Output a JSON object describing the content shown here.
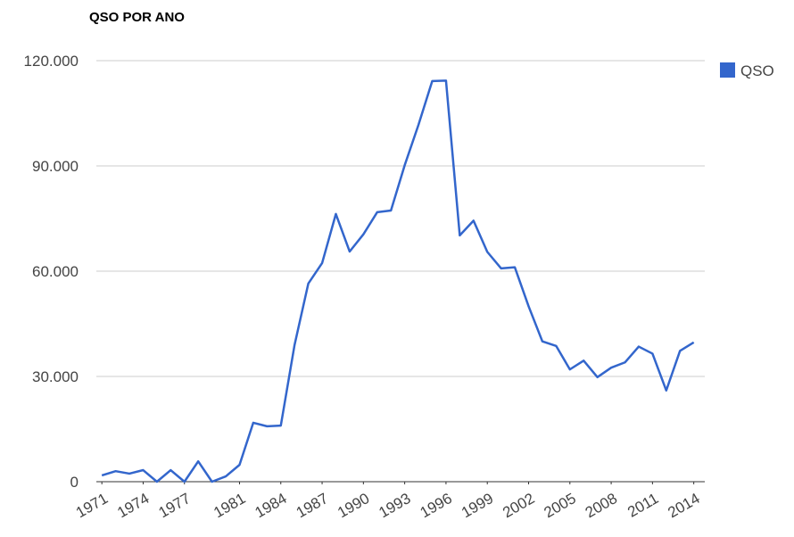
{
  "chart_data": {
    "type": "line",
    "title": "QSO POR ANO",
    "x": [
      1971,
      1972,
      1973,
      1974,
      1975,
      1976,
      1977,
      1978,
      1979,
      1980,
      1981,
      1982,
      1983,
      1984,
      1985,
      1986,
      1987,
      1988,
      1989,
      1990,
      1991,
      1992,
      1993,
      1994,
      1995,
      1996,
      1997,
      1998,
      1999,
      2000,
      2001,
      2002,
      2003,
      2004,
      2005,
      2006,
      2007,
      2008,
      2009,
      2010,
      2011,
      2012,
      2013,
      2014
    ],
    "series": [
      {
        "name": "QSO",
        "color": "#3366cc",
        "values": [
          1800,
          3000,
          2300,
          3300,
          0,
          3300,
          0,
          5800,
          0,
          1500,
          4800,
          16800,
          15800,
          16000,
          39000,
          56500,
          62300,
          76300,
          65600,
          70500,
          76800,
          77300,
          90200,
          101700,
          114200,
          114300,
          70200,
          74400,
          65500,
          60800,
          61100,
          50000,
          40000,
          38700,
          32000,
          34500,
          29800,
          32500,
          34000,
          38500,
          36500,
          26000,
          37300,
          39700
        ]
      }
    ],
    "xlim": [
      1970.6,
      2014.8
    ],
    "xticks": [
      1971,
      1974,
      1977,
      1981,
      1984,
      1987,
      1990,
      1993,
      1996,
      1999,
      2002,
      2005,
      2008,
      2011,
      2014
    ],
    "ylim": [
      0,
      120000
    ],
    "yticks": [
      0,
      {
        "value": 30000,
        "label": "30.000"
      },
      {
        "value": 60000,
        "label": "60.000"
      },
      {
        "value": 90000,
        "label": "90.000"
      },
      {
        "value": 120000,
        "label": "120.000"
      }
    ],
    "grid": true,
    "legend": "right"
  }
}
